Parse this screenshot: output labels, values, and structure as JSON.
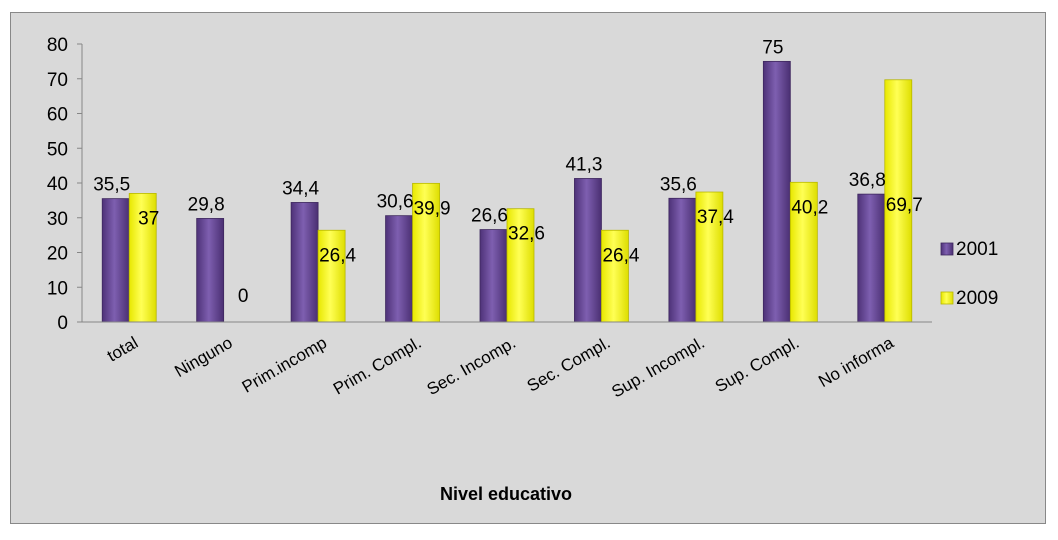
{
  "chart_data": {
    "type": "bar",
    "title": "",
    "xlabel": "Nivel educativo",
    "ylabel": "",
    "ylim": [
      0,
      80
    ],
    "yticks": [
      0,
      10,
      20,
      30,
      40,
      50,
      60,
      70,
      80
    ],
    "grid": false,
    "legend_position": "right",
    "categories": [
      "total",
      "Ninguno",
      "Prim.incomp",
      "Prim. Compl.",
      "Sec. Incomp.",
      "Sec. Compl.",
      "Sup. Incompl.",
      "Sup. Compl.",
      "No informa"
    ],
    "series": [
      {
        "name": "2001",
        "color": "#6b4a9b",
        "values": [
          35.5,
          29.8,
          34.4,
          30.6,
          26.6,
          41.3,
          35.6,
          75,
          36.8
        ],
        "labels": [
          "35,5",
          "29,8",
          "34,4",
          "30,6",
          "26,6",
          "41,3",
          "35,6",
          "75",
          "36,8"
        ]
      },
      {
        "name": "2009",
        "color": "#ffff00",
        "values": [
          37,
          0,
          26.4,
          39.9,
          32.6,
          26.4,
          37.4,
          40.2,
          69.7
        ],
        "labels": [
          "37",
          "0",
          "26,4",
          "39,9",
          "32,6",
          "26,4",
          "37,4",
          "40,2",
          "69,7"
        ]
      }
    ]
  }
}
